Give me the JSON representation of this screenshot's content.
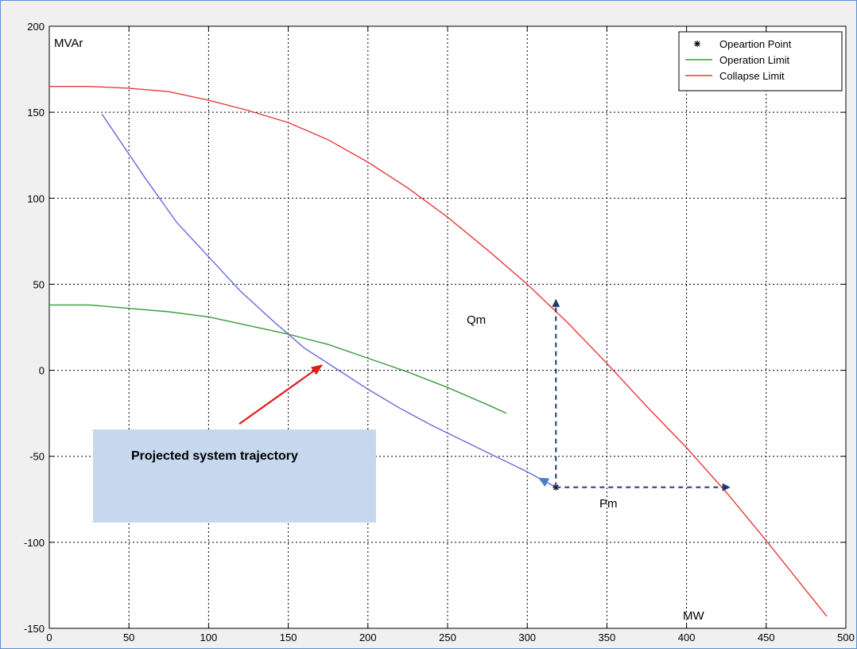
{
  "chart_data": {
    "type": "line",
    "xlim": [
      0,
      500
    ],
    "ylim": [
      -150,
      200
    ],
    "xticks": [
      0,
      50,
      100,
      150,
      200,
      250,
      300,
      350,
      400,
      450,
      500
    ],
    "yticks": [
      -150,
      -100,
      -50,
      0,
      50,
      100,
      150,
      200
    ],
    "grid": true,
    "legend_position": "top-right",
    "ylabel": "MVAr",
    "xlabel": "MW",
    "series": [
      {
        "name": "Opeartion Point",
        "marker": "star",
        "color": "#000000",
        "points": [
          [
            318,
            -68
          ]
        ]
      },
      {
        "name": "Operation Limit",
        "color": "#3c9a3c",
        "x": [
          0,
          25,
          50,
          75,
          100,
          125,
          150,
          175,
          200,
          225,
          250,
          275,
          287
        ],
        "y": [
          38,
          38,
          36,
          34,
          31,
          26,
          21,
          15,
          7,
          -1,
          -10,
          -20,
          -25
        ]
      },
      {
        "name": "Collapse Limit",
        "color": "#e83a3a",
        "x": [
          0,
          25,
          50,
          75,
          100,
          125,
          150,
          175,
          200,
          225,
          250,
          275,
          300,
          325,
          350,
          375,
          400,
          425,
          450,
          475,
          488
        ],
        "y": [
          165,
          165,
          164,
          162,
          157,
          151,
          144,
          134,
          121,
          106,
          89,
          70,
          50,
          28,
          4,
          -21,
          -45,
          -71,
          -99,
          -128,
          -143
        ]
      },
      {
        "name": "",
        "color": "#6a6ae6",
        "x": [
          33,
          60,
          80,
          100,
          120,
          140,
          160,
          180,
          200,
          220,
          240,
          260,
          280,
          300,
          318
        ],
        "y": [
          149,
          112,
          86,
          66,
          46,
          29,
          13,
          1,
          -11,
          -22,
          -32,
          -41,
          -50,
          -59,
          -68
        ]
      }
    ],
    "annotations": {
      "ylabel": "MVAr",
      "xlabel": "MW",
      "qm": "Qm",
      "pm": "Pm",
      "box": "Projected system trajectory"
    }
  },
  "colors": {
    "frame_bg": "#f0f0f0",
    "axes_bg": "#ffffff",
    "grid": "#000000",
    "dashed_arrow": "#1f3b6b",
    "trajectory_arrowhead": "#4a7fc4",
    "callout_arrow": "#e31b1b",
    "text_box": "#c5d8ee"
  }
}
